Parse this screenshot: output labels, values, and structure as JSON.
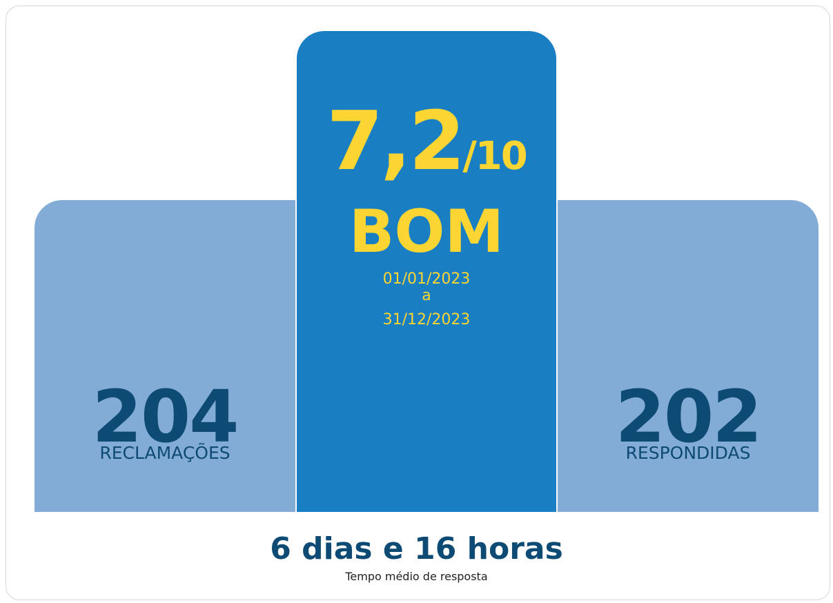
{
  "score": {
    "value": "7,2",
    "scale": "/10",
    "rating": "BOM"
  },
  "period": {
    "start": "01/01/2023",
    "separator": "a",
    "end": "31/12/2023"
  },
  "left": {
    "number": "204",
    "label": "RECLAMAÇÕES"
  },
  "right": {
    "number": "202",
    "label": "RESPONDIDAS"
  },
  "footer": {
    "time": "6 dias e 16 horas",
    "caption": "Tempo médio de resposta"
  }
}
